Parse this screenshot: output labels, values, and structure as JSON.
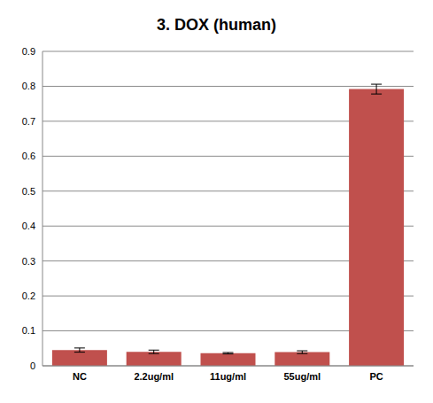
{
  "chart_data": {
    "type": "bar",
    "title": "3. DOX (human)",
    "categories": [
      "NC",
      "2.2ug/ml",
      "11ug/ml",
      "55ug/ml",
      "PC"
    ],
    "values": [
      0.045,
      0.04,
      0.036,
      0.039,
      0.792
    ],
    "error": [
      0.006,
      0.005,
      0.002,
      0.004,
      0.014
    ],
    "color": "#c0504d",
    "ylim": [
      0,
      0.9
    ],
    "yticks": [
      0,
      0.1,
      0.2,
      0.3,
      0.4,
      0.5,
      0.6,
      0.7,
      0.8,
      0.9
    ],
    "grid": true
  }
}
